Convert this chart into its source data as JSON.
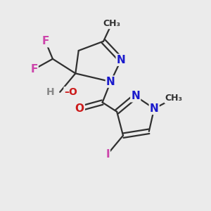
{
  "background_color": "#EBEBEB",
  "bond_color": "#303030",
  "bond_width": 1.6,
  "atom_colors": {
    "N": "#1A1ACC",
    "O": "#CC1A1A",
    "F": "#CC44AA",
    "I": "#CC44AA",
    "H": "#888888",
    "C": "#303030",
    "HO_H": "#888888",
    "HO_O": "#CC1A1A"
  },
  "figsize": [
    3.0,
    3.0
  ],
  "dpi": 100,
  "xlim": [
    0,
    10
  ],
  "ylim": [
    0,
    10
  ]
}
